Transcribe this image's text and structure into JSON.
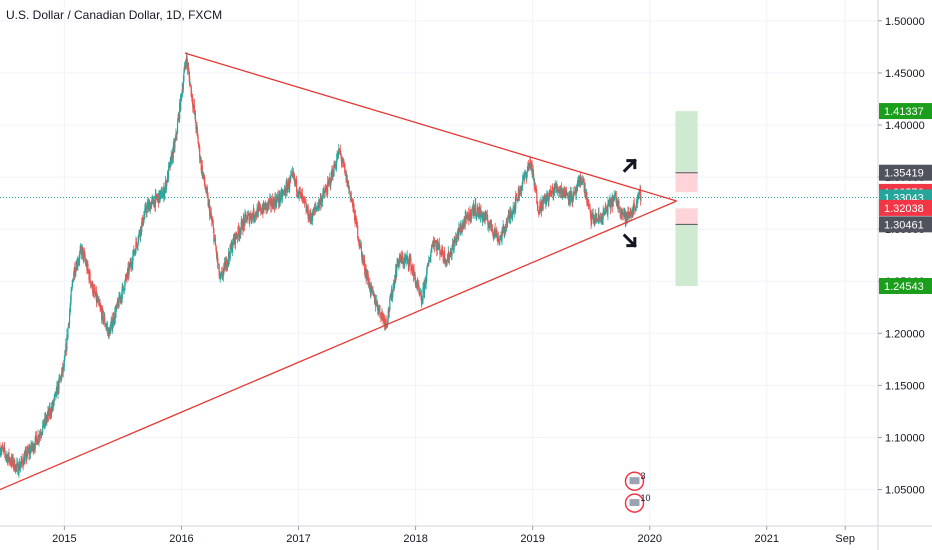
{
  "header": {
    "symbol_title": "U.S. Dollar / Canadian Dollar, 1D, FXCM"
  },
  "colors": {
    "background": "#ffffff",
    "grid": "#f0f3fa",
    "candle_up": "#26a69a",
    "candle_down": "#ef5350",
    "trendline": "#e53935",
    "last_price_line": "#26a69a",
    "target_zone": "#c8e6c9",
    "stop_zone": "#ffcdd2",
    "tag_green": "#1b9e1b",
    "tag_red": "#f23645",
    "tag_teal": "#26a69a",
    "tag_dark": "#50535e"
  },
  "chart_data": {
    "type": "candlestick",
    "x_tick_labels": [
      "2015",
      "2016",
      "2017",
      "2018",
      "2019",
      "2020",
      "2021",
      "Sep"
    ],
    "x_tick_years": [
      2015,
      2016,
      2017,
      2018,
      2019,
      2020,
      2021,
      2021.67
    ],
    "x_range": [
      2014.45,
      2021.95
    ],
    "y_tick_labels": [
      "1.50000",
      "1.45000",
      "1.40000",
      "1.35000",
      "1.30000",
      "1.25000",
      "1.20000",
      "1.15000",
      "1.10000",
      "1.05000"
    ],
    "y_tick_values": [
      1.5,
      1.45,
      1.4,
      1.35,
      1.3,
      1.25,
      1.2,
      1.15,
      1.1,
      1.05
    ],
    "y_range": [
      1.015,
      1.52
    ],
    "price_path": [
      [
        2014.45,
        1.09
      ],
      [
        2014.6,
        1.07
      ],
      [
        2014.75,
        1.095
      ],
      [
        2014.9,
        1.13
      ],
      [
        2015.0,
        1.17
      ],
      [
        2015.08,
        1.26
      ],
      [
        2015.15,
        1.28
      ],
      [
        2015.25,
        1.24
      ],
      [
        2015.38,
        1.2
      ],
      [
        2015.55,
        1.26
      ],
      [
        2015.7,
        1.32
      ],
      [
        2015.85,
        1.335
      ],
      [
        2015.95,
        1.385
      ],
      [
        2016.04,
        1.465
      ],
      [
        2016.1,
        1.42
      ],
      [
        2016.17,
        1.36
      ],
      [
        2016.27,
        1.3
      ],
      [
        2016.33,
        1.25
      ],
      [
        2016.45,
        1.29
      ],
      [
        2016.55,
        1.31
      ],
      [
        2016.7,
        1.32
      ],
      [
        2016.85,
        1.33
      ],
      [
        2016.95,
        1.35
      ],
      [
        2017.1,
        1.31
      ],
      [
        2017.25,
        1.34
      ],
      [
        2017.35,
        1.375
      ],
      [
        2017.45,
        1.33
      ],
      [
        2017.55,
        1.27
      ],
      [
        2017.62,
        1.24
      ],
      [
        2017.7,
        1.22
      ],
      [
        2017.75,
        1.21
      ],
      [
        2017.85,
        1.27
      ],
      [
        2017.95,
        1.27
      ],
      [
        2018.05,
        1.23
      ],
      [
        2018.15,
        1.29
      ],
      [
        2018.27,
        1.27
      ],
      [
        2018.38,
        1.3
      ],
      [
        2018.5,
        1.32
      ],
      [
        2018.6,
        1.31
      ],
      [
        2018.72,
        1.29
      ],
      [
        2018.85,
        1.325
      ],
      [
        2018.98,
        1.365
      ],
      [
        2019.05,
        1.32
      ],
      [
        2019.2,
        1.34
      ],
      [
        2019.35,
        1.33
      ],
      [
        2019.42,
        1.35
      ],
      [
        2019.5,
        1.31
      ],
      [
        2019.58,
        1.31
      ],
      [
        2019.7,
        1.33
      ],
      [
        2019.8,
        1.31
      ],
      [
        2019.85,
        1.3175
      ],
      [
        2019.93,
        1.335
      ]
    ],
    "trendlines": [
      {
        "name": "upper",
        "from": [
          2016.03,
          1.469
        ],
        "to": [
          2020.23,
          1.327
        ]
      },
      {
        "name": "lower",
        "from": [
          2014.45,
          1.05
        ],
        "to": [
          2020.23,
          1.327
        ]
      }
    ],
    "arrows": [
      {
        "name": "up-arrow",
        "x": 2019.83,
        "y": 1.362,
        "direction": "up"
      },
      {
        "name": "down-arrow",
        "x": 2019.83,
        "y": 1.288,
        "direction": "down"
      }
    ],
    "position_zones": [
      {
        "name": "long-target-zone",
        "x_from": 2020.22,
        "x_to": 2020.41,
        "y_from": 1.355,
        "y_to": 1.41337,
        "fill": "#c8e6c9"
      },
      {
        "name": "long-stop-zone",
        "x_from": 2020.22,
        "x_to": 2020.41,
        "y_from": 1.3355,
        "y_to": 1.355,
        "fill": "#ffcdd2"
      },
      {
        "name": "short-stop-zone",
        "x_from": 2020.22,
        "x_to": 2020.41,
        "y_from": 1.305,
        "y_to": 1.32,
        "fill": "#ffcdd2"
      },
      {
        "name": "short-target-zone",
        "x_from": 2020.22,
        "x_to": 2020.41,
        "y_from": 1.24543,
        "y_to": 1.305,
        "fill": "#c8e6c9"
      }
    ],
    "last_price": 1.33043,
    "price_tags": [
      {
        "label": "1.41337",
        "value": 1.41337,
        "color": "#1b9e1b"
      },
      {
        "label": "1.35419",
        "value": 1.35419,
        "color": "#50535e"
      },
      {
        "label": "1.33576",
        "value": 1.33576,
        "color": "#f23645"
      },
      {
        "label": "1.33043",
        "value": 1.33043,
        "color": "#26a69a"
      },
      {
        "label": "1.32038",
        "value": 1.32038,
        "color": "#f23645"
      },
      {
        "label": "1.30461",
        "value": 1.30461,
        "color": "#50535e"
      },
      {
        "label": "1.24543",
        "value": 1.24543,
        "color": "#1b9e1b"
      }
    ],
    "event_markers": [
      {
        "label": "3",
        "x": 2019.87,
        "y": 1.058
      },
      {
        "label": "10",
        "x": 2019.87,
        "y": 1.037
      }
    ]
  }
}
